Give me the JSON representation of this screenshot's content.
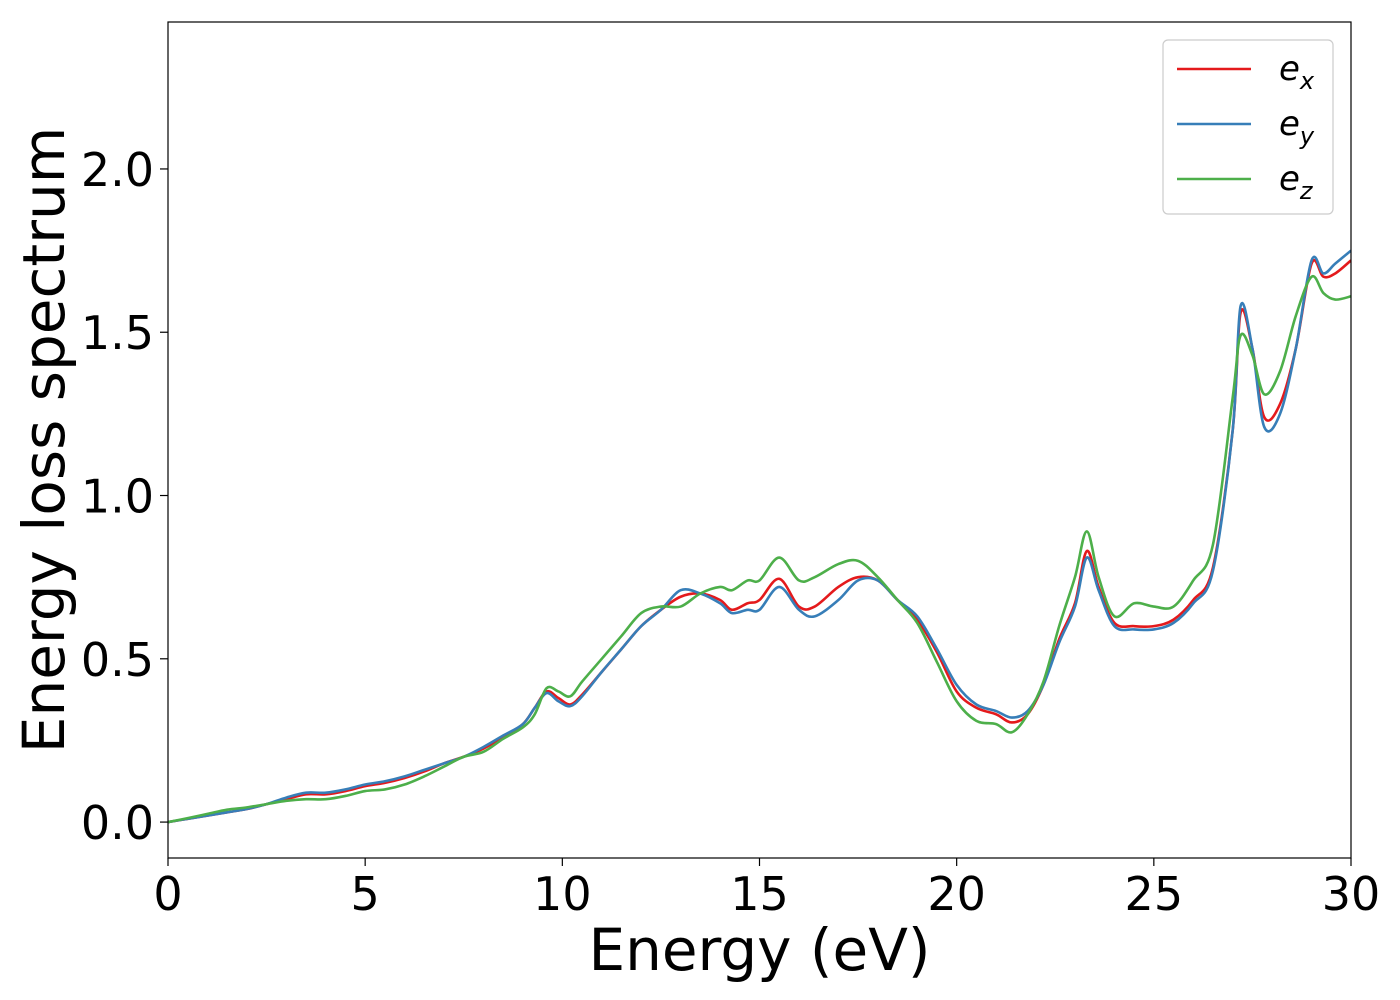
{
  "chart_data": {
    "type": "line",
    "title": "",
    "xlabel": "Energy (eV)",
    "ylabel": "Energy loss spectrum",
    "xlim": [
      0,
      30
    ],
    "ylim": [
      -0.11,
      2.45
    ],
    "xticks": [
      0,
      5,
      10,
      15,
      20,
      25,
      30
    ],
    "xtick_labels": [
      "0",
      "5",
      "10",
      "15",
      "20",
      "25",
      "30"
    ],
    "yticks": [
      0.0,
      0.5,
      1.0,
      1.5,
      2.0
    ],
    "ytick_labels": [
      "0.0",
      "0.5",
      "1.0",
      "1.5",
      "2.0"
    ],
    "grid": false,
    "legend_position": "top-right",
    "series": [
      {
        "name": "e_x",
        "legend_base": "e",
        "legend_sub": "x",
        "color": "#e41a1c",
        "x": [
          0,
          0.5,
          1,
          1.5,
          2,
          2.5,
          3,
          3.5,
          4,
          4.5,
          5,
          5.5,
          6,
          6.5,
          7,
          7.5,
          8,
          8.5,
          9,
          9.3,
          9.6,
          9.9,
          10.2,
          10.5,
          11,
          11.5,
          12,
          12.5,
          13,
          13.5,
          14,
          14.3,
          14.7,
          15,
          15.5,
          16,
          16.4,
          17,
          17.5,
          18,
          18.5,
          19,
          19.5,
          20,
          20.5,
          21,
          21.4,
          21.8,
          22.2,
          22.6,
          23,
          23.3,
          23.6,
          24,
          24.5,
          25,
          25.5,
          26,
          26.5,
          27,
          27.2,
          27.5,
          27.8,
          28.2,
          28.6,
          29,
          29.3,
          29.6,
          30
        ],
        "y": [
          0.0,
          0.01,
          0.02,
          0.03,
          0.04,
          0.055,
          0.07,
          0.085,
          0.085,
          0.095,
          0.11,
          0.12,
          0.135,
          0.155,
          0.18,
          0.2,
          0.225,
          0.26,
          0.3,
          0.35,
          0.4,
          0.38,
          0.36,
          0.39,
          0.46,
          0.53,
          0.6,
          0.65,
          0.69,
          0.7,
          0.68,
          0.65,
          0.67,
          0.68,
          0.745,
          0.66,
          0.66,
          0.72,
          0.75,
          0.74,
          0.68,
          0.62,
          0.52,
          0.4,
          0.35,
          0.33,
          0.305,
          0.33,
          0.42,
          0.56,
          0.67,
          0.83,
          0.72,
          0.61,
          0.6,
          0.6,
          0.62,
          0.68,
          0.78,
          1.2,
          1.56,
          1.45,
          1.24,
          1.28,
          1.45,
          1.71,
          1.67,
          1.68,
          1.72
        ]
      },
      {
        "name": "e_y",
        "legend_base": "e",
        "legend_sub": "y",
        "color": "#377eb8",
        "x": [
          0,
          0.5,
          1,
          1.5,
          2,
          2.5,
          3,
          3.5,
          4,
          4.5,
          5,
          5.5,
          6,
          6.5,
          7,
          7.5,
          8,
          8.5,
          9,
          9.3,
          9.6,
          9.9,
          10.2,
          10.5,
          11,
          11.5,
          12,
          12.5,
          13,
          13.5,
          14,
          14.3,
          14.7,
          15,
          15.5,
          16,
          16.4,
          17,
          17.5,
          18,
          18.5,
          19,
          19.5,
          20,
          20.5,
          21,
          21.4,
          21.8,
          22.2,
          22.6,
          23,
          23.3,
          23.6,
          24,
          24.5,
          25,
          25.5,
          26,
          26.5,
          27,
          27.2,
          27.5,
          27.8,
          28.2,
          28.6,
          29,
          29.3,
          29.6,
          30
        ],
        "y": [
          0.0,
          0.01,
          0.02,
          0.03,
          0.04,
          0.055,
          0.075,
          0.09,
          0.09,
          0.1,
          0.115,
          0.125,
          0.14,
          0.16,
          0.18,
          0.2,
          0.23,
          0.265,
          0.3,
          0.35,
          0.395,
          0.37,
          0.355,
          0.385,
          0.46,
          0.53,
          0.6,
          0.65,
          0.71,
          0.7,
          0.67,
          0.64,
          0.65,
          0.65,
          0.72,
          0.65,
          0.63,
          0.68,
          0.74,
          0.74,
          0.68,
          0.63,
          0.53,
          0.42,
          0.36,
          0.34,
          0.32,
          0.34,
          0.42,
          0.55,
          0.66,
          0.81,
          0.71,
          0.6,
          0.59,
          0.59,
          0.61,
          0.67,
          0.77,
          1.2,
          1.58,
          1.45,
          1.21,
          1.25,
          1.45,
          1.72,
          1.68,
          1.71,
          1.75
        ]
      },
      {
        "name": "e_z",
        "legend_base": "e",
        "legend_sub": "z",
        "color": "#4daf4a",
        "x": [
          0,
          0.5,
          1,
          1.5,
          2,
          2.5,
          3,
          3.5,
          4,
          4.5,
          5,
          5.5,
          6,
          6.5,
          7,
          7.5,
          8,
          8.5,
          9,
          9.3,
          9.6,
          9.9,
          10.2,
          10.5,
          11,
          11.5,
          12,
          12.5,
          13,
          13.5,
          14,
          14.3,
          14.7,
          15,
          15.5,
          16,
          16.4,
          17,
          17.5,
          18,
          18.5,
          19,
          19.5,
          20,
          20.5,
          21,
          21.4,
          21.8,
          22.2,
          22.6,
          23,
          23.3,
          23.6,
          24,
          24.5,
          25,
          25.5,
          26,
          26.5,
          27,
          27.2,
          27.5,
          27.8,
          28.2,
          28.6,
          29,
          29.3,
          29.6,
          30
        ],
        "y": [
          0.0,
          0.012,
          0.025,
          0.038,
          0.045,
          0.055,
          0.065,
          0.07,
          0.07,
          0.08,
          0.095,
          0.1,
          0.115,
          0.14,
          0.17,
          0.2,
          0.215,
          0.255,
          0.29,
          0.33,
          0.41,
          0.4,
          0.385,
          0.43,
          0.5,
          0.57,
          0.64,
          0.66,
          0.66,
          0.7,
          0.72,
          0.71,
          0.74,
          0.74,
          0.81,
          0.74,
          0.75,
          0.79,
          0.8,
          0.75,
          0.68,
          0.61,
          0.49,
          0.37,
          0.31,
          0.3,
          0.275,
          0.33,
          0.43,
          0.6,
          0.75,
          0.89,
          0.75,
          0.63,
          0.67,
          0.66,
          0.66,
          0.74,
          0.85,
          1.3,
          1.49,
          1.43,
          1.31,
          1.38,
          1.55,
          1.67,
          1.62,
          1.6,
          1.61
        ]
      }
    ]
  }
}
